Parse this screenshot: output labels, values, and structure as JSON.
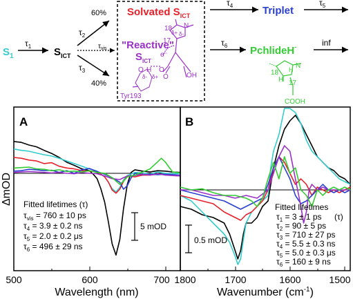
{
  "scheme": {
    "s1": "S",
    "s1_sub": "1",
    "sict": "S",
    "sict_sub": "ICT",
    "tau1": "τ",
    "tau1_sub": "1",
    "tau2": "τ",
    "tau2_sub": "2",
    "tau3": "τ",
    "tau3_sub": "3",
    "tauvis": "τ",
    "tauvis_sub": "vis",
    "tau4": "τ",
    "tau4_sub": "4",
    "tau5": "τ",
    "tau5_sub": "5",
    "tau6": "τ",
    "tau6_sub": "6",
    "pct60": "60%",
    "pct40": "40%",
    "solvated": "Solvated S",
    "solvated_sub": "ICT",
    "reactive": "\"Reactive\"",
    "reactive_s": "S",
    "reactive_sub": "ICT",
    "triplet": "Triplet",
    "pchlide": "PchlideH",
    "pchlide_sup": "-",
    "inf": "inf",
    "tyr": "Tyr193",
    "lbl18": "18",
    "lbl17": "17",
    "lbl18b": "18",
    "lbl17b": "17",
    "delta_plus1": "δ+",
    "delta_plus2": "δ+",
    "delta_minus1": "δ-",
    "delta_minus2": "δ-",
    "e_minus": "e⁻",
    "h_atom": "H",
    "o1": "O",
    "o2": "O",
    "o3": "O",
    "oh": "OH",
    "n1": "N",
    "n2": "N",
    "h2": "H",
    "h3": "H",
    "cooh": "COOH",
    "colors": {
      "s1": "#33cccc",
      "solvated": "#e8202a",
      "reactive": "#9b30c8",
      "triplet": "#2a3fd1",
      "pchlide": "#33cc33"
    }
  },
  "panel_a": {
    "letter": "A",
    "ylabel": "ΔmOD",
    "xlabel": "Wavelength (nm)",
    "fit_title": "Fitted lifetimes (τ)",
    "fits": [
      "τ",
      "τ",
      "τ",
      "τ"
    ],
    "fit_subs": [
      "vis",
      "4",
      "5",
      "6"
    ],
    "fit_vals": [
      " = 760 ± 10 ps",
      " = 3.9 ± 0.2 ns",
      " = 2.0 ± 0.2 μs",
      " = 496 ± 29 ns"
    ],
    "scalebar": "5 mOD"
  },
  "panel_b": {
    "letter": "B",
    "xlabel": "Wavenumber (cm",
    "xlabel_sup": "-1",
    "xlabel_end": ")",
    "fit_title": "Fitted   lifetimes",
    "fit_tau": "(τ)",
    "fits": [
      "τ",
      "τ",
      "τ",
      "τ",
      "τ",
      "τ"
    ],
    "fit_subs": [
      "1",
      "2",
      "3",
      "4",
      "5",
      "6"
    ],
    "fit_vals": [
      " = 3 ± 1 ps",
      " = 90 ± 5 ps",
      " = 710 ± 27 ps",
      " = 5.5 ± 0.3 ns",
      " = 5.0 ± 0.3 μs",
      " = 160 ± 9 ns"
    ],
    "scalebar": "0.5 mOD"
  },
  "chart_data": [
    {
      "type": "line",
      "panel": "A",
      "xlabel": "Wavelength (nm)",
      "ylabel": "ΔmOD",
      "xlim": [
        500,
        720
      ],
      "xticks": [
        500,
        600,
        700
      ],
      "series": [
        {
          "color": "#000000",
          "x": [
            500,
            510,
            520,
            530,
            540,
            550,
            560,
            570,
            580,
            590,
            600,
            605,
            610,
            615,
            620,
            625,
            630,
            635,
            640,
            645,
            650,
            655,
            660,
            670,
            680,
            690,
            700,
            710,
            720
          ],
          "y": [
            7.2,
            7.0,
            6.4,
            6.0,
            5.2,
            4.5,
            3.6,
            2.5,
            1.8,
            1.0,
            0.6,
            -0.2,
            -1.2,
            -3.5,
            -6.5,
            -11.0,
            -16.0,
            -18.5,
            -15.0,
            -8.0,
            -2.5,
            0.2,
            0.8,
            0.5,
            0.3,
            0.6,
            0.5,
            0.3,
            0.2
          ]
        },
        {
          "color": "#33cccc",
          "x": [
            500,
            510,
            520,
            530,
            540,
            550,
            560,
            570,
            580,
            590,
            600,
            610,
            620,
            625,
            630,
            635,
            640,
            645,
            650,
            660,
            670,
            680,
            690,
            700,
            710,
            720
          ],
          "y": [
            5.5,
            5.2,
            5.0,
            4.6,
            4.2,
            3.9,
            3.4,
            2.8,
            2.2,
            1.6,
            1.0,
            0.5,
            -0.8,
            -2.0,
            -3.5,
            -4.2,
            -3.2,
            -1.5,
            -0.5,
            0.2,
            0.1,
            -0.2,
            0.3,
            0.0,
            -0.1,
            0.0
          ]
        },
        {
          "color": "#e8202a",
          "x": [
            500,
            510,
            520,
            530,
            540,
            550,
            560,
            570,
            580,
            590,
            600,
            610,
            620,
            625,
            630,
            635,
            640,
            645,
            650,
            660,
            670,
            680,
            690,
            700,
            710,
            720
          ],
          "y": [
            3.6,
            3.4,
            3.0,
            2.8,
            2.2,
            2.4,
            1.6,
            1.2,
            1.0,
            0.6,
            0.5,
            0.4,
            -0.8,
            -2.0,
            -3.8,
            -4.5,
            -3.6,
            -1.8,
            -0.6,
            -0.8,
            -0.4,
            -0.4,
            -0.2,
            -0.3,
            -0.5,
            -0.6
          ]
        },
        {
          "color": "#2a3fd1",
          "x": [
            500,
            510,
            520,
            530,
            540,
            550,
            560,
            570,
            580,
            590,
            600,
            610,
            620,
            630,
            640,
            645,
            650,
            655,
            660,
            670,
            680,
            690,
            700,
            710,
            720
          ],
          "y": [
            0.5,
            0.6,
            0.9,
            0.8,
            0.6,
            0.7,
            0.2,
            0.6,
            0.0,
            0.8,
            1.1,
            0.4,
            -0.2,
            -1.0,
            -2.0,
            -3.6,
            -2.8,
            -1.0,
            0.0,
            -0.3,
            -0.2,
            -0.3,
            -0.2,
            -0.3,
            -0.4
          ]
        },
        {
          "color": "#9b30c8",
          "x": [
            500,
            510,
            520,
            530,
            540,
            550,
            560,
            570,
            580,
            590,
            600,
            610,
            620,
            630,
            640,
            645,
            650,
            660,
            670,
            680,
            690,
            700,
            710,
            720
          ],
          "y": [
            0.2,
            0.3,
            0.4,
            0.3,
            0.2,
            0.1,
            0.2,
            0.0,
            -0.1,
            0.2,
            0.0,
            -0.1,
            -0.6,
            -1.2,
            -1.4,
            -1.0,
            -0.6,
            -0.5,
            -0.2,
            -0.4,
            -0.1,
            -0.4,
            -0.5,
            -0.6
          ]
        },
        {
          "color": "#33cc33",
          "x": [
            500,
            510,
            520,
            530,
            540,
            550,
            560,
            570,
            580,
            590,
            600,
            610,
            620,
            630,
            640,
            645,
            650,
            660,
            670,
            680,
            690,
            695,
            700,
            705,
            710,
            720
          ],
          "y": [
            1.2,
            1.3,
            1.4,
            1.0,
            0.9,
            0.6,
            0.8,
            0.4,
            0.5,
            0.3,
            0.6,
            0.2,
            0.0,
            -1.0,
            -2.5,
            -1.8,
            -0.8,
            -0.4,
            0.3,
            1.0,
            2.6,
            3.4,
            2.6,
            1.4,
            0.3,
            0.1
          ]
        }
      ]
    },
    {
      "type": "line",
      "panel": "B",
      "xlabel": "Wavenumber (cm-1)",
      "xlim": [
        1800,
        1490
      ],
      "xticks": [
        1800,
        1700,
        1600,
        1500
      ],
      "series": [
        {
          "color": "#000000",
          "x": [
            1800,
            1780,
            1760,
            1740,
            1720,
            1710,
            1700,
            1695,
            1690,
            1685,
            1680,
            1670,
            1660,
            1650,
            1640,
            1630,
            1620,
            1610,
            1600,
            1590,
            1580,
            1570,
            1560,
            1550,
            1540,
            1530,
            1520,
            1510,
            1500,
            1490
          ],
          "y": [
            -0.3,
            -0.35,
            -0.45,
            -0.5,
            -0.6,
            -0.8,
            -1.1,
            -1.25,
            -1.1,
            -0.8,
            -0.6,
            -0.6,
            -0.5,
            -0.3,
            -0.2,
            0.4,
            0.8,
            1.1,
            1.25,
            1.35,
            1.2,
            1.0,
            0.8,
            0.6,
            0.5,
            0.4,
            0.35,
            0.25,
            0.2,
            0.1
          ]
        },
        {
          "color": "#33cccc",
          "x": [
            1800,
            1780,
            1760,
            1740,
            1720,
            1710,
            1700,
            1695,
            1690,
            1685,
            1680,
            1670,
            1660,
            1650,
            1640,
            1635,
            1630,
            1620,
            1610,
            1600,
            1590,
            1580,
            1570,
            1560,
            1550,
            1540,
            1530,
            1520,
            1510,
            1500,
            1490
          ],
          "y": [
            -0.1,
            -0.2,
            -0.4,
            -0.6,
            -0.8,
            -0.95,
            -1.2,
            -1.35,
            -1.25,
            -0.9,
            -0.6,
            -0.4,
            -0.3,
            -0.2,
            -0.1,
            0.4,
            0.7,
            1.0,
            1.5,
            1.6,
            1.4,
            1.2,
            0.9,
            0.7,
            0.6,
            0.5,
            0.4,
            0.3,
            0.2,
            0.15,
            0.1
          ]
        },
        {
          "color": "#e8202a",
          "x": [
            1800,
            1780,
            1760,
            1740,
            1720,
            1700,
            1690,
            1680,
            1670,
            1660,
            1650,
            1640,
            1630,
            1620,
            1610,
            1600,
            1590,
            1580,
            1570,
            1560,
            1550,
            1540,
            1530,
            1520,
            1510,
            1500,
            1490
          ],
          "y": [
            -0.1,
            -0.15,
            -0.2,
            -0.25,
            -0.4,
            -0.5,
            -0.55,
            -0.45,
            -0.4,
            -0.3,
            -0.2,
            0.0,
            0.4,
            0.6,
            0.5,
            0.3,
            0.1,
            0.2,
            0.1,
            -0.1,
            0.05,
            0.0,
            -0.05,
            0.0,
            -0.05,
            0.0,
            0.05
          ]
        },
        {
          "color": "#2a3fd1",
          "x": [
            1800,
            1780,
            1760,
            1740,
            1720,
            1700,
            1690,
            1680,
            1670,
            1660,
            1650,
            1640,
            1630,
            1620,
            1610,
            1600,
            1590,
            1580,
            1570,
            1560,
            1550,
            1540,
            1530,
            1520,
            1510,
            1500,
            1490
          ],
          "y": [
            0.0,
            -0.05,
            -0.1,
            -0.15,
            -0.2,
            -0.3,
            -0.35,
            -0.3,
            -0.25,
            -0.2,
            -0.15,
            0.1,
            0.4,
            0.6,
            0.4,
            0.2,
            -0.1,
            -0.25,
            -0.2,
            -0.1,
            0.0,
            0.1,
            0.0,
            -0.05,
            0.0,
            -0.05,
            0.0
          ]
        },
        {
          "color": "#9b30c8",
          "x": [
            1800,
            1780,
            1760,
            1740,
            1720,
            1700,
            1680,
            1660,
            1640,
            1630,
            1620,
            1610,
            1600,
            1590,
            1580,
            1575,
            1570,
            1565,
            1560,
            1550,
            1540,
            1530,
            1520,
            1510,
            1500,
            1490
          ],
          "y": [
            0.0,
            0.0,
            -0.05,
            -0.1,
            -0.1,
            -0.15,
            -0.1,
            -0.15,
            0.0,
            0.3,
            0.6,
            0.8,
            0.7,
            0.2,
            -0.3,
            -0.6,
            -0.4,
            0.0,
            0.1,
            0.0,
            0.05,
            0.0,
            0.0,
            0.0,
            0.0,
            0.0
          ]
        },
        {
          "color": "#33cc33",
          "x": [
            1800,
            1780,
            1760,
            1740,
            1720,
            1700,
            1680,
            1670,
            1660,
            1650,
            1640,
            1630,
            1620,
            1610,
            1600,
            1590,
            1580,
            1570,
            1560,
            1550,
            1540,
            1530,
            1520,
            1510,
            1500,
            1490
          ],
          "y": [
            0.05,
            0.0,
            0.02,
            -0.05,
            -0.1,
            -0.1,
            -0.15,
            -0.2,
            -0.3,
            -0.15,
            0.2,
            0.5,
            0.2,
            0.6,
            0.3,
            0.4,
            0.0,
            -0.1,
            -0.3,
            0.0,
            -0.1,
            0.0,
            0.05,
            0.0,
            0.05,
            0.0
          ]
        }
      ]
    }
  ]
}
